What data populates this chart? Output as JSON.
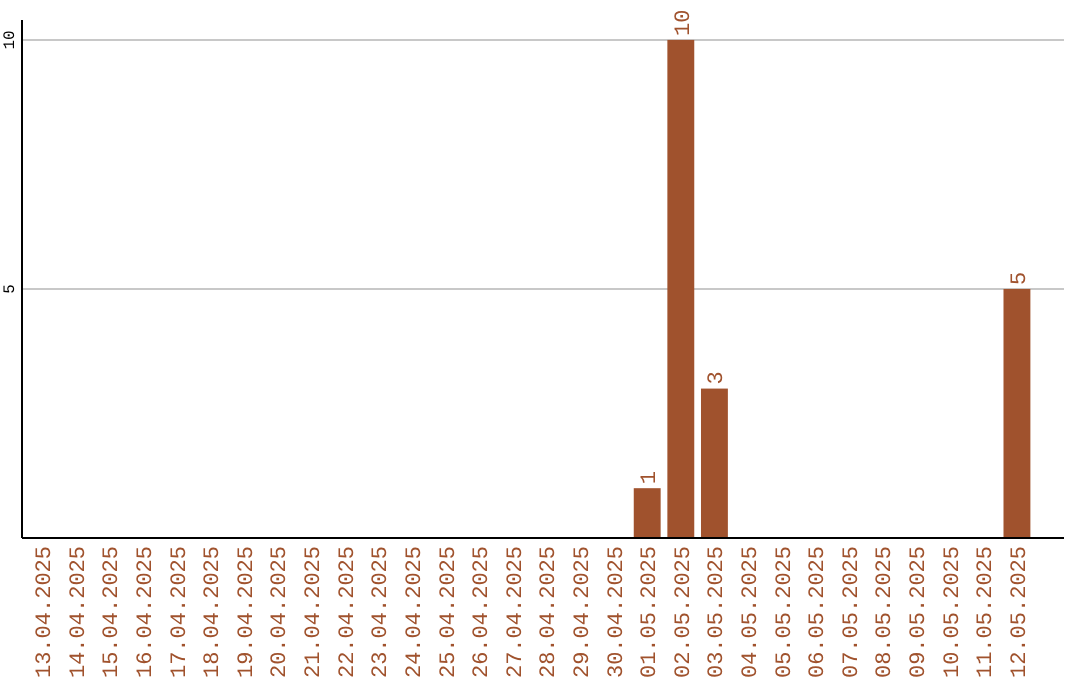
{
  "chart_data": {
    "type": "bar",
    "categories": [
      "13.04.2025",
      "14.04.2025",
      "15.04.2025",
      "16.04.2025",
      "17.04.2025",
      "18.04.2025",
      "19.04.2025",
      "20.04.2025",
      "21.04.2025",
      "22.04.2025",
      "23.04.2025",
      "24.04.2025",
      "25.04.2025",
      "26.04.2025",
      "27.04.2025",
      "28.04.2025",
      "29.04.2025",
      "30.04.2025",
      "01.05.2025",
      "02.05.2025",
      "03.05.2025",
      "04.05.2025",
      "05.05.2025",
      "06.05.2025",
      "07.05.2025",
      "08.05.2025",
      "09.05.2025",
      "10.05.2025",
      "11.05.2025",
      "12.05.2025"
    ],
    "values": [
      0,
      0,
      0,
      0,
      0,
      0,
      0,
      0,
      0,
      0,
      0,
      0,
      0,
      0,
      0,
      0,
      0,
      0,
      1,
      10,
      3,
      0,
      0,
      0,
      0,
      0,
      0,
      0,
      0,
      5
    ],
    "value_labels": [
      null,
      null,
      null,
      null,
      null,
      null,
      null,
      null,
      null,
      null,
      null,
      null,
      null,
      null,
      null,
      null,
      null,
      null,
      "1",
      "10",
      "3",
      null,
      null,
      null,
      null,
      null,
      null,
      null,
      null,
      "5"
    ],
    "color": "#a0522d",
    "ylim": [
      0,
      10.4
    ],
    "yticks": [
      5,
      10
    ],
    "grid": "y"
  }
}
